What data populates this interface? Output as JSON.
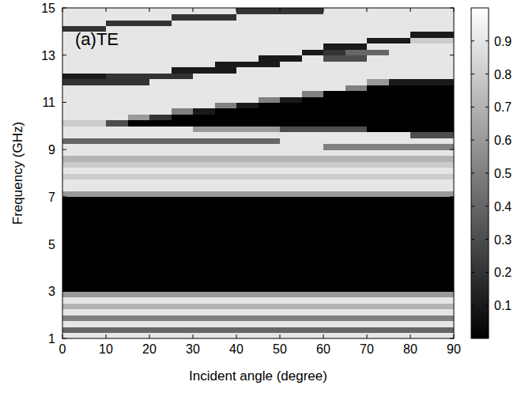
{
  "chart_data": {
    "type": "heatmap",
    "annotations": [
      "(a)TE"
    ],
    "xlabel": "Incident angle (degree)",
    "ylabel": "Frequency (GHz)",
    "xlim": [
      0,
      90
    ],
    "ylim": [
      1,
      15
    ],
    "xticks": [
      0,
      10,
      20,
      30,
      40,
      50,
      60,
      70,
      80,
      90
    ],
    "yticks": [
      1,
      3,
      5,
      7,
      9,
      11,
      13,
      15
    ],
    "x_bins": [
      0,
      5,
      10,
      15,
      20,
      25,
      30,
      35,
      40,
      45,
      50,
      55,
      60,
      65,
      70,
      75,
      80,
      85,
      90
    ],
    "y_bins": [
      1,
      1.25,
      1.5,
      1.75,
      2,
      2.25,
      2.5,
      2.75,
      3,
      3.25,
      3.5,
      3.75,
      4,
      4.25,
      4.5,
      4.75,
      5,
      5.25,
      5.5,
      5.75,
      6,
      6.25,
      6.5,
      6.75,
      7,
      7.25,
      7.5,
      7.75,
      8,
      8.25,
      8.5,
      8.75,
      9,
      9.25,
      9.5,
      9.75,
      10,
      10.25,
      10.5,
      10.75,
      11,
      11.25,
      11.5,
      11.75,
      12,
      12.25,
      12.5,
      12.75,
      13,
      13.25,
      13.5,
      13.75,
      14,
      14.25,
      14.5,
      14.75,
      15
    ],
    "cells": [
      [
        0.9,
        0.9,
        0.9,
        0.9,
        0.9,
        0.9,
        0.9,
        0.9,
        0.9,
        0.9,
        0.9,
        0.9,
        0.9,
        0.9,
        0.9,
        0.9,
        0.9,
        0.9
      ],
      [
        0.4,
        0.4,
        0.4,
        0.4,
        0.4,
        0.4,
        0.4,
        0.4,
        0.4,
        0.4,
        0.4,
        0.4,
        0.4,
        0.4,
        0.4,
        0.4,
        0.4,
        0.4
      ],
      [
        0.9,
        0.9,
        0.9,
        0.9,
        0.9,
        0.9,
        0.9,
        0.9,
        0.9,
        0.9,
        0.9,
        0.9,
        0.9,
        0.9,
        0.9,
        0.9,
        0.9,
        0.9
      ],
      [
        0.5,
        0.5,
        0.5,
        0.5,
        0.5,
        0.5,
        0.5,
        0.5,
        0.5,
        0.5,
        0.5,
        0.5,
        0.5,
        0.5,
        0.5,
        0.5,
        0.5,
        0.5
      ],
      [
        0.9,
        0.9,
        0.9,
        0.9,
        0.9,
        0.9,
        0.9,
        0.9,
        0.9,
        0.9,
        0.9,
        0.9,
        0.9,
        0.9,
        0.9,
        0.9,
        0.9,
        0.9
      ],
      [
        0.7,
        0.7,
        0.7,
        0.7,
        0.7,
        0.7,
        0.7,
        0.7,
        0.7,
        0.7,
        0.7,
        0.7,
        0.7,
        0.7,
        0.7,
        0.7,
        0.7,
        0.7
      ],
      [
        0.9,
        0.9,
        0.9,
        0.9,
        0.9,
        0.9,
        0.9,
        0.9,
        0.9,
        0.9,
        0.9,
        0.9,
        0.9,
        0.9,
        0.9,
        0.9,
        0.9,
        0.9
      ],
      [
        0.6,
        0.6,
        0.6,
        0.6,
        0.6,
        0.6,
        0.6,
        0.6,
        0.6,
        0.6,
        0.6,
        0.6,
        0.6,
        0.6,
        0.6,
        0.6,
        0.6,
        0.6
      ],
      [
        0,
        0,
        0,
        0,
        0,
        0,
        0,
        0,
        0,
        0,
        0,
        0,
        0,
        0,
        0,
        0,
        0,
        0
      ],
      [
        0,
        0,
        0,
        0,
        0,
        0,
        0,
        0,
        0,
        0,
        0,
        0,
        0,
        0,
        0,
        0,
        0,
        0
      ],
      [
        0,
        0,
        0,
        0,
        0,
        0,
        0,
        0,
        0,
        0,
        0,
        0,
        0,
        0,
        0,
        0,
        0,
        0
      ],
      [
        0,
        0,
        0,
        0,
        0,
        0,
        0,
        0,
        0,
        0,
        0,
        0,
        0,
        0,
        0,
        0,
        0,
        0
      ],
      [
        0,
        0,
        0,
        0,
        0,
        0,
        0,
        0,
        0,
        0,
        0,
        0,
        0,
        0,
        0,
        0,
        0,
        0
      ],
      [
        0,
        0,
        0,
        0,
        0,
        0,
        0,
        0,
        0,
        0,
        0,
        0,
        0,
        0,
        0,
        0,
        0,
        0
      ],
      [
        0,
        0,
        0,
        0,
        0,
        0,
        0,
        0,
        0,
        0,
        0,
        0,
        0,
        0,
        0,
        0,
        0,
        0
      ],
      [
        0,
        0,
        0,
        0,
        0,
        0,
        0,
        0,
        0,
        0,
        0,
        0,
        0,
        0,
        0,
        0,
        0,
        0
      ],
      [
        0,
        0,
        0,
        0,
        0,
        0,
        0,
        0,
        0,
        0,
        0,
        0,
        0,
        0,
        0,
        0,
        0,
        0
      ],
      [
        0,
        0,
        0,
        0,
        0,
        0,
        0,
        0,
        0,
        0,
        0,
        0,
        0,
        0,
        0,
        0,
        0,
        0
      ],
      [
        0,
        0,
        0,
        0,
        0,
        0,
        0,
        0,
        0,
        0,
        0,
        0,
        0,
        0,
        0,
        0,
        0,
        0
      ],
      [
        0,
        0,
        0,
        0,
        0,
        0,
        0,
        0,
        0,
        0,
        0,
        0,
        0,
        0,
        0,
        0,
        0,
        0
      ],
      [
        0,
        0,
        0,
        0,
        0,
        0,
        0,
        0,
        0,
        0,
        0,
        0,
        0,
        0,
        0,
        0,
        0,
        0
      ],
      [
        0,
        0,
        0,
        0,
        0,
        0,
        0,
        0,
        0,
        0,
        0,
        0,
        0,
        0,
        0,
        0,
        0,
        0
      ],
      [
        0,
        0,
        0,
        0,
        0,
        0,
        0,
        0,
        0,
        0,
        0,
        0,
        0,
        0,
        0,
        0,
        0,
        0
      ],
      [
        0,
        0,
        0,
        0,
        0,
        0,
        0,
        0,
        0,
        0,
        0,
        0,
        0,
        0,
        0,
        0,
        0,
        0
      ],
      [
        0.6,
        0.6,
        0.6,
        0.6,
        0.6,
        0.6,
        0.6,
        0.6,
        0.6,
        0.6,
        0.6,
        0.6,
        0.6,
        0.6,
        0.6,
        0.6,
        0.6,
        0.6
      ],
      [
        0.9,
        0.9,
        0.9,
        0.9,
        0.9,
        0.9,
        0.9,
        0.9,
        0.9,
        0.9,
        0.9,
        0.9,
        0.9,
        0.9,
        0.9,
        0.9,
        0.9,
        0.9
      ],
      [
        0.9,
        0.9,
        0.9,
        0.9,
        0.9,
        0.9,
        0.9,
        0.9,
        0.9,
        0.9,
        0.9,
        0.9,
        0.9,
        0.9,
        0.9,
        0.9,
        0.9,
        0.9
      ],
      [
        0.8,
        0.8,
        0.8,
        0.8,
        0.8,
        0.8,
        0.8,
        0.8,
        0.8,
        0.8,
        0.8,
        0.8,
        0.8,
        0.8,
        0.8,
        0.8,
        0.8,
        0.8
      ],
      [
        0.9,
        0.9,
        0.9,
        0.9,
        0.9,
        0.9,
        0.9,
        0.9,
        0.9,
        0.9,
        0.9,
        0.9,
        0.9,
        0.9,
        0.9,
        0.9,
        0.9,
        0.9
      ],
      [
        0.8,
        0.8,
        0.8,
        0.8,
        0.8,
        0.8,
        0.8,
        0.8,
        0.8,
        0.8,
        0.8,
        0.8,
        0.8,
        0.8,
        0.8,
        0.8,
        0.8,
        0.8
      ],
      [
        0.7,
        0.7,
        0.7,
        0.7,
        0.7,
        0.7,
        0.7,
        0.7,
        0.7,
        0.7,
        0.7,
        0.7,
        0.7,
        0.7,
        0.7,
        0.7,
        0.7,
        0.7
      ],
      [
        0.9,
        0.9,
        0.9,
        0.9,
        0.9,
        0.9,
        0.9,
        0.9,
        0.9,
        0.9,
        0.9,
        0.9,
        0.9,
        0.9,
        0.9,
        0.9,
        0.9,
        0.9
      ],
      [
        0.9,
        0.9,
        0.9,
        0.9,
        0.9,
        0.9,
        0.9,
        0.9,
        0.9,
        0.9,
        0.9,
        0.9,
        0.5,
        0.5,
        0.5,
        0.5,
        0.5,
        0.5
      ],
      [
        0.4,
        0.4,
        0.4,
        0.4,
        0.4,
        0.4,
        0.4,
        0.4,
        0.4,
        0.4,
        0.9,
        0.9,
        0.9,
        0.9,
        0.9,
        0.9,
        0.9,
        0.9
      ],
      [
        0.9,
        0.9,
        0.9,
        0.9,
        0.9,
        0.9,
        0.9,
        0.9,
        0.9,
        0.9,
        0.9,
        0.9,
        0.9,
        0.9,
        0.9,
        0.9,
        0.3,
        0.3
      ],
      [
        0.9,
        0.9,
        0.9,
        0.9,
        0.9,
        0.9,
        0.6,
        0.6,
        0.6,
        0.6,
        0.3,
        0.3,
        0.3,
        0.3,
        0,
        0,
        0,
        0
      ],
      [
        0.8,
        0.8,
        0.3,
        0,
        0,
        0,
        0,
        0,
        0,
        0,
        0,
        0,
        0,
        0,
        0,
        0,
        0,
        0
      ],
      [
        0.9,
        0.9,
        0.9,
        0.6,
        0.2,
        0,
        0,
        0,
        0,
        0,
        0,
        0,
        0,
        0,
        0,
        0,
        0,
        0
      ],
      [
        0.9,
        0.9,
        0.9,
        0.9,
        0.9,
        0.5,
        0.1,
        0,
        0,
        0,
        0,
        0,
        0,
        0,
        0,
        0,
        0,
        0
      ],
      [
        0.9,
        0.9,
        0.9,
        0.9,
        0.9,
        0.9,
        0.9,
        0.5,
        0.1,
        0,
        0,
        0,
        0,
        0,
        0,
        0,
        0,
        0
      ],
      [
        0.9,
        0.9,
        0.9,
        0.9,
        0.9,
        0.9,
        0.9,
        0.9,
        0.9,
        0.5,
        0.1,
        0,
        0,
        0,
        0,
        0,
        0,
        0
      ],
      [
        0.9,
        0.9,
        0.9,
        0.9,
        0.9,
        0.9,
        0.9,
        0.9,
        0.9,
        0.9,
        0.9,
        0.5,
        0,
        0,
        0,
        0,
        0,
        0
      ],
      [
        0.9,
        0.9,
        0.9,
        0.9,
        0.9,
        0.9,
        0.9,
        0.9,
        0.9,
        0.9,
        0.9,
        0.9,
        0.9,
        0.5,
        0,
        0,
        0,
        0
      ],
      [
        0.2,
        0.2,
        0.2,
        0.2,
        0.9,
        0.9,
        0.9,
        0.9,
        0.9,
        0.9,
        0.9,
        0.9,
        0.9,
        0.9,
        0.6,
        0.1,
        0.1,
        0.1
      ],
      [
        0.1,
        0.1,
        0.2,
        0.2,
        0.2,
        0.2,
        0.9,
        0.9,
        0.9,
        0.9,
        0.9,
        0.9,
        0.9,
        0.9,
        0.9,
        0.9,
        0.9,
        0.9
      ],
      [
        0.9,
        0.9,
        0.9,
        0.9,
        0.9,
        0.1,
        0.1,
        0.1,
        0.9,
        0.9,
        0.9,
        0.9,
        0.9,
        0.9,
        0.9,
        0.9,
        0.9,
        0.9
      ],
      [
        0.9,
        0.9,
        0.9,
        0.9,
        0.9,
        0.9,
        0.9,
        0.1,
        0.1,
        0.1,
        0.9,
        0.9,
        0.9,
        0.9,
        0.9,
        0.9,
        0.9,
        0.9
      ],
      [
        0.9,
        0.9,
        0.9,
        0.9,
        0.9,
        0.9,
        0.9,
        0.9,
        0.9,
        0.1,
        0.1,
        0.9,
        0.3,
        0.3,
        0.9,
        0.9,
        0.9,
        0.9
      ],
      [
        0.9,
        0.9,
        0.9,
        0.9,
        0.9,
        0.9,
        0.9,
        0.9,
        0.9,
        0.9,
        0.9,
        0.1,
        0.2,
        0.4,
        0.4,
        0.9,
        0.9,
        0.9
      ],
      [
        0.9,
        0.9,
        0.9,
        0.9,
        0.9,
        0.9,
        0.9,
        0.9,
        0.9,
        0.9,
        0.9,
        0.9,
        0.1,
        0.1,
        0.9,
        0.9,
        0.9,
        0.9
      ],
      [
        0.9,
        0.9,
        0.9,
        0.9,
        0.9,
        0.9,
        0.9,
        0.9,
        0.9,
        0.9,
        0.9,
        0.9,
        0.9,
        0.9,
        0.1,
        0.1,
        0.8,
        0.8
      ],
      [
        0.9,
        0.9,
        0.9,
        0.9,
        0.9,
        0.9,
        0.9,
        0.9,
        0.9,
        0.9,
        0.9,
        0.9,
        0.9,
        0.9,
        0.9,
        0.9,
        0.1,
        0.1
      ],
      [
        0.2,
        0.2,
        0.9,
        0.9,
        0.9,
        0.9,
        0.9,
        0.9,
        0.9,
        0.9,
        0.9,
        0.9,
        0.9,
        0.9,
        0.9,
        0.9,
        0.9,
        0.9
      ],
      [
        0.9,
        0.9,
        0.2,
        0.2,
        0.2,
        0.9,
        0.9,
        0.9,
        0.9,
        0.9,
        0.9,
        0.9,
        0.9,
        0.9,
        0.9,
        0.9,
        0.9,
        0.9
      ],
      [
        0.9,
        0.9,
        0.9,
        0.9,
        0.9,
        0.2,
        0.2,
        0.2,
        0.9,
        0.9,
        0.9,
        0.9,
        0.9,
        0.9,
        0.9,
        0.9,
        0.9,
        0.9
      ],
      [
        0.9,
        0.9,
        0.9,
        0.9,
        0.9,
        0.9,
        0.9,
        0.9,
        0.2,
        0.2,
        0.2,
        0.2,
        0.9,
        0.9,
        0.9,
        0.9,
        0.9,
        0.9
      ]
    ],
    "colorbar": {
      "range": [
        0,
        1
      ],
      "ticks": [
        0.1,
        0.2,
        0.3,
        0.4,
        0.5,
        0.6,
        0.7,
        0.8,
        0.9
      ]
    }
  }
}
